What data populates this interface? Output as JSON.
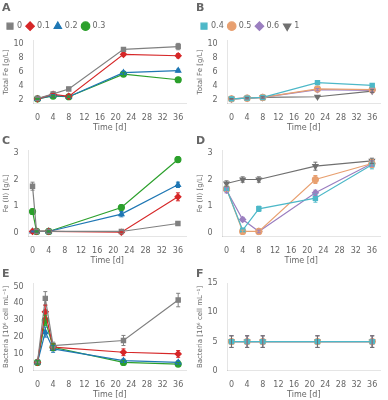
{
  "chart_data": [
    {
      "type": "line",
      "title": "A",
      "xlabel": "Time [d]",
      "ylabel": "Total Fe [g/L]",
      "x": [
        0,
        4,
        8,
        22,
        36
      ],
      "series": [
        {
          "name": "0",
          "color": "#808080",
          "marker": "square",
          "values": [
            2.25,
            2.9,
            3.6,
            9.2,
            9.6
          ],
          "yerr": [
            0.05,
            0.1,
            0.1,
            0.25,
            0.45
          ]
        },
        {
          "name": "0.1",
          "color": "#d62728",
          "marker": "diamond",
          "values": [
            2.2,
            2.85,
            2.55,
            8.5,
            8.3
          ],
          "yerr": [
            0.05,
            0.1,
            0.15,
            0.2,
            0.3
          ]
        },
        {
          "name": "0.2",
          "color": "#1f77b4",
          "marker": "triangle_up",
          "values": [
            2.2,
            2.7,
            2.5,
            5.9,
            6.2
          ],
          "yerr": [
            0.05,
            0.1,
            0.1,
            0.2,
            0.2
          ]
        },
        {
          "name": "0.3",
          "color": "#2ca02c",
          "marker": "circle",
          "values": [
            2.2,
            2.6,
            2.5,
            5.7,
            4.9
          ],
          "yerr": [
            0.05,
            0.1,
            0.1,
            0.2,
            0.3
          ]
        }
      ],
      "xlim": [
        -1,
        38
      ],
      "xticks": [
        0,
        4,
        8,
        12,
        16,
        20,
        24,
        28,
        32,
        36
      ],
      "ylim": [
        1.5,
        10.5
      ],
      "yticks": [
        2,
        4,
        6,
        8,
        10
      ],
      "grid": false,
      "legend": "upper left"
    },
    {
      "type": "line",
      "title": "B",
      "xlabel": "Time [d]",
      "ylabel": "Total Fe [g/L]",
      "x": [
        0,
        4,
        8,
        22,
        36
      ],
      "series": [
        {
          "name": "0.4",
          "color": "#4db8c8",
          "marker": "square",
          "values": [
            2.2,
            2.3,
            2.4,
            4.5,
            4.1
          ],
          "yerr": [
            0.05,
            0.1,
            0.1,
            0.15,
            0.2
          ]
        },
        {
          "name": "0.5",
          "color": "#e8a070",
          "marker": "circle",
          "values": [
            2.2,
            2.3,
            2.4,
            3.6,
            3.5
          ],
          "yerr": [
            0.05,
            0.1,
            0.1,
            0.15,
            0.2
          ]
        },
        {
          "name": "0.6",
          "color": "#9b7fc0",
          "marker": "diamond",
          "values": [
            2.2,
            2.3,
            2.4,
            3.5,
            3.4
          ],
          "yerr": [
            0.05,
            0.1,
            0.1,
            0.15,
            0.2
          ]
        },
        {
          "name": "1",
          "color": "#707070",
          "marker": "triangle_down",
          "values": [
            2.2,
            2.3,
            2.4,
            2.5,
            3.3
          ],
          "yerr": [
            0.05,
            0.1,
            0.1,
            0.15,
            0.2
          ]
        }
      ],
      "xlim": [
        -1,
        38
      ],
      "xticks": [
        0,
        4,
        8,
        12,
        16,
        20,
        24,
        28,
        32,
        36
      ],
      "ylim": [
        1.5,
        10.5
      ],
      "yticks": [
        2,
        4,
        6,
        8,
        10
      ],
      "grid": false,
      "legend": "upper left"
    },
    {
      "type": "line",
      "title": "C",
      "xlabel": "Time [d]",
      "ylabel": "Fe (II) [g/L]",
      "x": [
        0,
        1,
        4,
        22,
        36
      ],
      "series": [
        {
          "name": "0",
          "color": "#808080",
          "marker": "square",
          "values": [
            1.75,
            0.05,
            0.05,
            0.05,
            0.35
          ],
          "yerr": [
            0.15,
            0.02,
            0.02,
            0.02,
            0.05
          ]
        },
        {
          "name": "0.1",
          "color": "#d62728",
          "marker": "diamond",
          "values": [
            0.05,
            0.05,
            0.05,
            0.02,
            1.35
          ],
          "yerr": [
            0.02,
            0.02,
            0.02,
            0.02,
            0.15
          ]
        },
        {
          "name": "0.2",
          "color": "#1f77b4",
          "marker": "triangle_up",
          "values": [
            0.05,
            0.05,
            0.05,
            0.7,
            1.8
          ],
          "yerr": [
            0.02,
            0.02,
            0.02,
            0.1,
            0.1
          ]
        },
        {
          "name": "0.3",
          "color": "#2ca02c",
          "marker": "circle",
          "values": [
            0.8,
            0.05,
            0.05,
            0.95,
            2.75
          ],
          "yerr": [
            0.1,
            0.02,
            0.02,
            0.1,
            0.1
          ]
        }
      ],
      "xlim": [
        -1,
        38
      ],
      "xticks": [
        0,
        4,
        8,
        12,
        16,
        20,
        24,
        28,
        32,
        36
      ],
      "ylim": [
        -0.15,
        3.1
      ],
      "yticks": [
        0,
        1,
        2,
        3
      ],
      "grid": false
    },
    {
      "type": "line",
      "title": "D",
      "xlabel": "Time [d]",
      "ylabel": "Fe (II) [g/L]",
      "x": [
        0,
        4,
        8,
        22,
        36
      ],
      "series": [
        {
          "name": "0.4",
          "color": "#4db8c8",
          "marker": "square",
          "values": [
            1.65,
            0.1,
            0.9,
            1.3,
            2.55
          ],
          "yerr": [
            0.1,
            0.05,
            0.1,
            0.15,
            0.15
          ]
        },
        {
          "name": "0.5",
          "color": "#e8a070",
          "marker": "circle",
          "values": [
            1.65,
            0.05,
            0.05,
            2.0,
            2.6
          ],
          "yerr": [
            0.1,
            0.05,
            0.05,
            0.15,
            0.15
          ]
        },
        {
          "name": "0.6",
          "color": "#9b7fc0",
          "marker": "diamond",
          "values": [
            1.6,
            0.5,
            0.05,
            1.5,
            2.6
          ],
          "yerr": [
            0.1,
            0.08,
            0.05,
            0.1,
            0.1
          ]
        },
        {
          "name": "1",
          "color": "#707070",
          "marker": "triangle_down",
          "values": [
            1.85,
            2.0,
            2.0,
            2.5,
            2.7
          ],
          "yerr": [
            0.1,
            0.1,
            0.1,
            0.15,
            0.1
          ]
        }
      ],
      "xlim": [
        -1,
        38
      ],
      "xticks": [
        0,
        4,
        8,
        12,
        16,
        20,
        24,
        28,
        32,
        36
      ],
      "ylim": [
        -0.15,
        3.1
      ],
      "yticks": [
        0,
        1,
        2,
        3
      ],
      "grid": false
    },
    {
      "type": "line",
      "title": "E",
      "xlabel": "Time [d]",
      "ylabel": "Bacteria [10⁶ cell mL⁻¹]",
      "x": [
        0,
        2,
        4,
        22,
        36
      ],
      "series": [
        {
          "name": "0",
          "color": "#808080",
          "marker": "square",
          "values": [
            5,
            43,
            15,
            18,
            42
          ],
          "yerr": [
            1,
            4,
            2,
            3,
            4
          ]
        },
        {
          "name": "0.1",
          "color": "#d62728",
          "marker": "diamond",
          "values": [
            5,
            35,
            14,
            11,
            10
          ],
          "yerr": [
            1,
            4,
            2,
            2,
            2
          ]
        },
        {
          "name": "0.2",
          "color": "#1f77b4",
          "marker": "triangle_up",
          "values": [
            5,
            23,
            13,
            6,
            5
          ],
          "yerr": [
            1,
            3,
            2,
            1,
            1
          ]
        },
        {
          "name": "0.3",
          "color": "#2ca02c",
          "marker": "circle",
          "values": [
            5,
            30,
            14,
            5,
            4
          ],
          "yerr": [
            1,
            3,
            2,
            1,
            1
          ]
        }
      ],
      "xlim": [
        -1,
        38
      ],
      "xticks": [
        0,
        4,
        8,
        12,
        16,
        20,
        24,
        28,
        32,
        36
      ],
      "ylim": [
        0,
        52
      ],
      "yticks": [
        0,
        10,
        20,
        30,
        40,
        50
      ],
      "grid": false
    },
    {
      "type": "line",
      "title": "F",
      "xlabel": "Time [d]",
      "ylabel": "Bacteria [10⁶ cell mL⁻¹]",
      "x": [
        0,
        4,
        8,
        22,
        36
      ],
      "series": [
        {
          "name": "0.4",
          "color": "#4db8c8",
          "marker": "square",
          "values": [
            5,
            5,
            5,
            5,
            5
          ],
          "yerr": [
            1,
            1,
            1,
            1,
            1
          ]
        },
        {
          "name": "0.5",
          "color": "#e8a070",
          "marker": "circle",
          "values": [
            5,
            5,
            5,
            5,
            5
          ],
          "yerr": [
            1,
            1,
            1,
            1,
            1
          ]
        },
        {
          "name": "0.6",
          "color": "#9b7fc0",
          "marker": "diamond",
          "values": [
            5,
            5,
            5,
            5,
            5
          ],
          "yerr": [
            1,
            1,
            1,
            1,
            1
          ]
        },
        {
          "name": "1",
          "color": "#707070",
          "marker": "triangle_down",
          "values": [
            5,
            5,
            5,
            5,
            5
          ],
          "yerr": [
            1,
            1,
            1,
            1,
            1
          ]
        }
      ],
      "xlim": [
        -1,
        38
      ],
      "xticks": [
        0,
        4,
        8,
        12,
        16,
        20,
        24,
        28,
        32,
        36
      ],
      "ylim": [
        0,
        15
      ],
      "yticks": [
        0,
        5,
        10,
        15
      ],
      "grid": false
    }
  ]
}
